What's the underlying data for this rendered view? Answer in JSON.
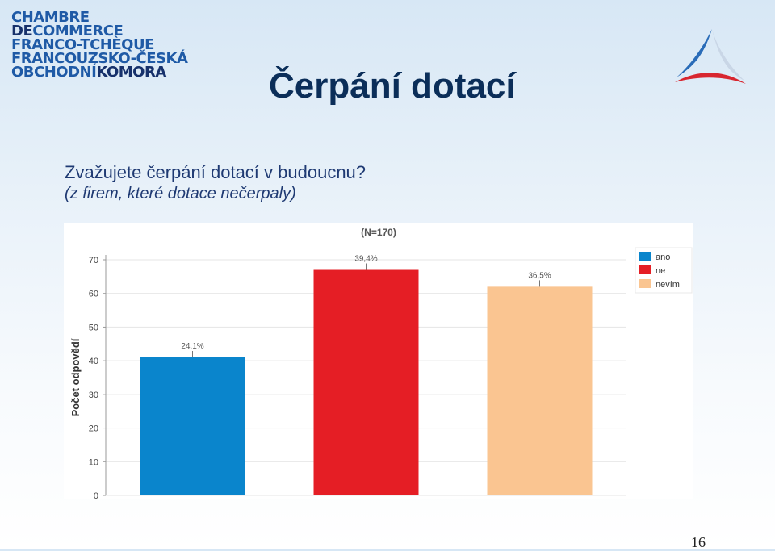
{
  "header": {
    "logo_lines": [
      "CHAMBRE",
      "DE",
      "COMMERCE",
      "FRANCO-TCHÈQUE",
      "FRANCOUZSKO-ČESKÁ",
      "OBCHODNÍ",
      "KOMORA"
    ],
    "logo_colors": {
      "light": "#1f5aa6",
      "dark": "#17316b"
    },
    "brand_icon": "tricolor-swoosh-icon"
  },
  "slide": {
    "title": "Čerpání dotací",
    "question": "Zvažujete čerpání dotací v budoucnu?",
    "note": "(z firem, které dotace nečerpaly)",
    "page_number": "16"
  },
  "chart_data": {
    "type": "bar",
    "title": "(N=170)",
    "ylabel": "Počet odpovědí",
    "xlabel": "",
    "ylim": [
      0,
      70
    ],
    "yticks": [
      0,
      10,
      20,
      30,
      40,
      50,
      60,
      70
    ],
    "grid": true,
    "legend_position": "top-right",
    "categories": [
      "ano",
      "ne",
      "nevím"
    ],
    "values": [
      41,
      67,
      62
    ],
    "data_labels": [
      "24,1%",
      "39,4%",
      "36,5%"
    ],
    "colors": [
      "#0a85cc",
      "#e51e25",
      "#fac591"
    ]
  }
}
